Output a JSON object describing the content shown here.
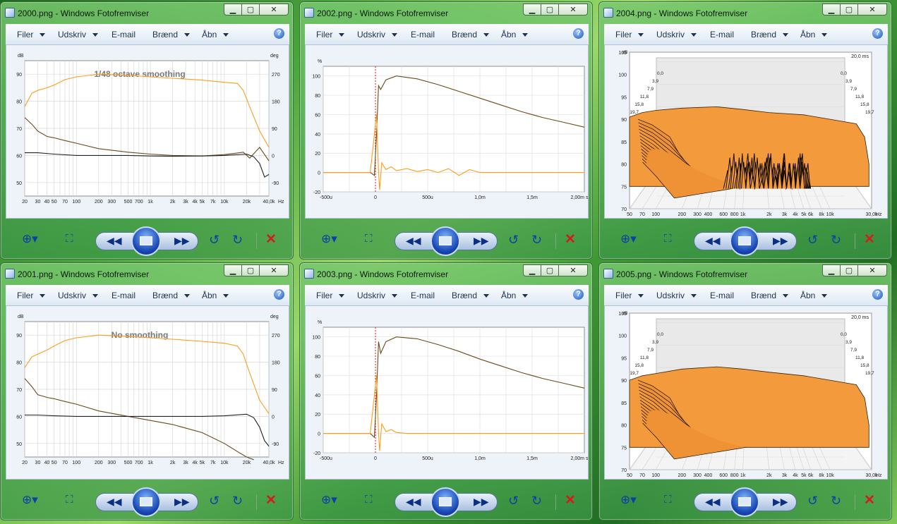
{
  "menu": {
    "items": [
      "Filer",
      "Udskriv",
      "E-mail",
      "Brænd",
      "Åbn"
    ],
    "has_caret": [
      true,
      true,
      false,
      true,
      true
    ]
  },
  "window_buttons": {
    "minimize": "▁",
    "maximize": "▢",
    "close": "✕"
  },
  "toolbar": {
    "zoom_icon": "magnifier-icon",
    "fit_icon": "actual-size-icon",
    "prev": "◀◀",
    "next": "▶▶",
    "rotate_left": "↺",
    "rotate_right": "↻",
    "delete": "✕"
  },
  "colors": {
    "orange": "#ff9c1a",
    "brown": "#6b4a1a",
    "black": "#222222",
    "red": "#e01818",
    "fill": "#f29a3c"
  },
  "windows": [
    {
      "title": "2000.png - Windows Fotofremviser",
      "kind": "freq",
      "annotation": "1/48 octave smoothing"
    },
    {
      "title": "2002.png - Windows Fotofremviser",
      "kind": "impulse",
      "variant": "ringing"
    },
    {
      "title": "2004.png - Windows Fotofremviser",
      "kind": "waterfall",
      "variant": "messy"
    },
    {
      "title": "2001.png - Windows Fotofremviser",
      "kind": "freq",
      "annotation": "No smoothing"
    },
    {
      "title": "2003.png - Windows Fotofremviser",
      "kind": "impulse",
      "variant": "clean"
    },
    {
      "title": "2005.png - Windows Fotofremviser",
      "kind": "waterfall",
      "variant": "clean"
    }
  ],
  "chart_data": [
    {
      "type": "line",
      "title": "1/48 octave smoothing",
      "ylabel": "dB",
      "y2label": "deg",
      "x_scale": "log",
      "x_ticks": [
        "20",
        "30",
        "40",
        "50",
        "70",
        "100",
        "200",
        "300",
        "500",
        "700",
        "1k",
        "2k",
        "3k",
        "4k",
        "5k",
        "7k",
        "10k",
        "20k",
        "40,0k"
      ],
      "x_unit": "Hz",
      "y_ticks": [
        "50",
        "60",
        "70",
        "80",
        "90"
      ],
      "y2_ticks": [
        "-90",
        "0",
        "90",
        "180",
        "270"
      ],
      "ylim": [
        45,
        95
      ],
      "y2lim": [
        -135,
        315
      ],
      "series": [
        {
          "color": "orange",
          "x": [
            20,
            25,
            30,
            40,
            50,
            70,
            100,
            200,
            500,
            1000,
            2000,
            5000,
            10000,
            15000,
            18000,
            22000,
            30000,
            40000
          ],
          "y": [
            78,
            83,
            84,
            85,
            86,
            88,
            89,
            90,
            89.6,
            89,
            88.5,
            87.8,
            87,
            86.6,
            84,
            78,
            69,
            63
          ]
        },
        {
          "color": "brown",
          "x": [
            20,
            25,
            30,
            40,
            50,
            70,
            100,
            200,
            500,
            1000,
            2000,
            5000,
            10000,
            15000,
            18000,
            22000,
            30000,
            40000
          ],
          "y": [
            74,
            71.5,
            69,
            67,
            66.5,
            65.5,
            64.5,
            62.5,
            61.2,
            60.5,
            60,
            59.8,
            60.3,
            60.9,
            61.2,
            59,
            63,
            58
          ]
        },
        {
          "color": "black",
          "x": [
            20,
            30,
            50,
            100,
            200,
            500,
            1000,
            2000,
            5000,
            10000,
            20000,
            25000,
            30000,
            35000,
            40000
          ],
          "y": [
            61,
            61,
            60.5,
            60,
            60,
            60,
            59.8,
            59.7,
            59.8,
            60,
            60.5,
            59.5,
            57,
            52,
            53
          ]
        }
      ]
    },
    {
      "type": "line",
      "ylabel": "%",
      "x_ticks": [
        "-500u",
        "0",
        "500u",
        "1,0m",
        "1,5m",
        "2,00m"
      ],
      "x_unit": "s",
      "y_ticks": [
        "-20",
        "0",
        "20",
        "40",
        "60",
        "80",
        "100"
      ],
      "xlim": [
        -0.0005,
        0.002
      ],
      "ylim": [
        -20,
        110
      ],
      "markers": [
        {
          "x": 0,
          "color": "red",
          "dashed": true
        }
      ],
      "series": [
        {
          "color": "brown",
          "x": [
            -0.0005,
            -5e-05,
            -1e-05,
            1e-05,
            3e-05,
            5e-05,
            0.0001,
            0.0002,
            0.0004,
            0.0006,
            0.0008,
            0.001,
            0.0012,
            0.0014,
            0.0016,
            0.0018,
            0.002
          ],
          "y": [
            0,
            0,
            -3,
            40,
            90,
            86,
            96,
            100,
            97,
            91,
            84,
            77,
            70,
            63,
            57,
            52,
            47
          ]
        },
        {
          "color": "orange",
          "x": [
            -0.0005,
            -5e-05,
            1e-05,
            3e-05,
            4e-05,
            6e-05,
            0.0001,
            0.00015,
            0.0002,
            0.0003,
            0.0004,
            0.0005,
            0.0006,
            0.0007,
            0.0008,
            0.0009,
            0.001,
            0.0015,
            0.002
          ],
          "y": [
            0,
            0,
            60,
            0,
            -18,
            10,
            3,
            6,
            2,
            4,
            1,
            3,
            0,
            4,
            -3,
            3,
            0,
            0,
            0
          ]
        }
      ]
    },
    {
      "type": "area",
      "ylabel": "dB",
      "x_scale": "log",
      "x_ticks": [
        "50",
        "70",
        "100",
        "200",
        "300",
        "400",
        "600",
        "800",
        "1k",
        "2k",
        "3k",
        "4k",
        "5k",
        "6k",
        "8k",
        "10k",
        "30,0k"
      ],
      "x_unit": "Hz",
      "y_ticks": [
        "70",
        "75",
        "80",
        "85",
        "90",
        "95",
        "100",
        "105"
      ],
      "time_labels": [
        "0,0",
        "3,9",
        "7,9",
        "11,8",
        "15,8",
        "19,7"
      ],
      "time_max": "20,0 ms",
      "ylim": [
        70,
        105
      ],
      "series": [
        {
          "color": "fill",
          "x": [
            50,
            70,
            100,
            200,
            500,
            1000,
            2000,
            5000,
            10000,
            20000,
            25000,
            28000
          ],
          "y": [
            90.5,
            91.5,
            92,
            92.5,
            92.8,
            92.2,
            91.5,
            91,
            90,
            89,
            86,
            80
          ]
        }
      ]
    },
    {
      "type": "line",
      "title": "No smoothing",
      "ylabel": "dB",
      "y2label": "deg",
      "x_scale": "log",
      "x_ticks": [
        "20",
        "30",
        "40",
        "50",
        "70",
        "100",
        "200",
        "300",
        "500",
        "700",
        "1k",
        "2k",
        "3k",
        "4k",
        "5k",
        "7k",
        "10k",
        "20k",
        "40,0k"
      ],
      "x_unit": "Hz",
      "y_ticks": [
        "50",
        "60",
        "70",
        "80",
        "90"
      ],
      "y2_ticks": [
        "-90",
        "0",
        "90",
        "180",
        "270"
      ],
      "ylim": [
        45,
        95
      ],
      "y2lim": [
        -135,
        315
      ],
      "series": [
        {
          "color": "orange",
          "x": [
            20,
            25,
            30,
            40,
            50,
            70,
            100,
            200,
            500,
            1000,
            2000,
            5000,
            10000,
            15000,
            18000,
            22000,
            30000,
            40000
          ],
          "y": [
            78,
            82,
            83,
            84.5,
            86,
            88,
            89,
            90,
            89.5,
            89,
            88.5,
            87.7,
            87,
            86,
            83,
            76,
            66,
            61
          ]
        },
        {
          "color": "brown",
          "x": [
            20,
            25,
            30,
            40,
            50,
            70,
            100,
            200,
            500,
            1000,
            2000,
            5000,
            10000,
            15000,
            20000,
            25000
          ],
          "y": [
            74,
            71,
            68,
            67,
            66.5,
            65.5,
            64.5,
            62,
            60,
            58.5,
            57,
            54,
            50,
            47,
            45,
            44
          ]
        },
        {
          "color": "black",
          "x": [
            20,
            30,
            50,
            100,
            200,
            500,
            1000,
            2000,
            5000,
            10000,
            20000,
            25000,
            30000,
            35000,
            40000
          ],
          "y": [
            60.5,
            60.5,
            60.2,
            60,
            60,
            60,
            60,
            60,
            60,
            60.2,
            60.8,
            59.5,
            56,
            51,
            49
          ]
        }
      ]
    },
    {
      "type": "line",
      "ylabel": "%",
      "x_ticks": [
        "-500u",
        "0",
        "500u",
        "1,0m",
        "1,5m",
        "2,00m"
      ],
      "x_unit": "s",
      "y_ticks": [
        "-20",
        "0",
        "20",
        "40",
        "60",
        "80",
        "100"
      ],
      "xlim": [
        -0.0005,
        0.002
      ],
      "ylim": [
        -20,
        110
      ],
      "markers": [
        {
          "x": 0,
          "color": "red",
          "dashed": true
        }
      ],
      "series": [
        {
          "color": "brown",
          "x": [
            -0.0005,
            -5e-05,
            -1e-05,
            1e-05,
            3e-05,
            5e-05,
            0.0001,
            0.0002,
            0.0004,
            0.0006,
            0.0008,
            0.001,
            0.0012,
            0.0014,
            0.0016,
            0.0018,
            0.002
          ],
          "y": [
            0,
            0,
            -4,
            40,
            95,
            83,
            95,
            100,
            98,
            92,
            85,
            77,
            70,
            63,
            57,
            52,
            47
          ]
        },
        {
          "color": "orange",
          "x": [
            -0.0005,
            -5e-05,
            1e-05,
            3e-05,
            4e-05,
            6e-05,
            0.0001,
            0.00015,
            0.0002,
            0.0003,
            0.0005,
            0.002
          ],
          "y": [
            0,
            0,
            60,
            0,
            -18,
            10,
            2,
            4,
            1,
            0,
            0,
            0
          ]
        }
      ]
    },
    {
      "type": "area",
      "ylabel": "dB",
      "x_scale": "log",
      "x_ticks": [
        "50",
        "70",
        "100",
        "200",
        "300",
        "400",
        "600",
        "800",
        "1k",
        "2k",
        "3k",
        "4k",
        "5k",
        "6k",
        "8k",
        "10k",
        "30,0k"
      ],
      "x_unit": "Hz",
      "y_ticks": [
        "70",
        "75",
        "80",
        "85",
        "90",
        "95",
        "100",
        "105"
      ],
      "time_labels": [
        "0,0",
        "3,9",
        "7,9",
        "11,8",
        "15,8",
        "19,7"
      ],
      "time_max": "20,0 ms",
      "ylim": [
        70,
        105
      ],
      "series": [
        {
          "color": "fill",
          "x": [
            50,
            70,
            100,
            200,
            500,
            1000,
            2000,
            5000,
            10000,
            20000,
            25000,
            28000
          ],
          "y": [
            90,
            91,
            91.5,
            92.5,
            93,
            92.5,
            91.8,
            91,
            90,
            89,
            86,
            80
          ]
        }
      ]
    }
  ]
}
